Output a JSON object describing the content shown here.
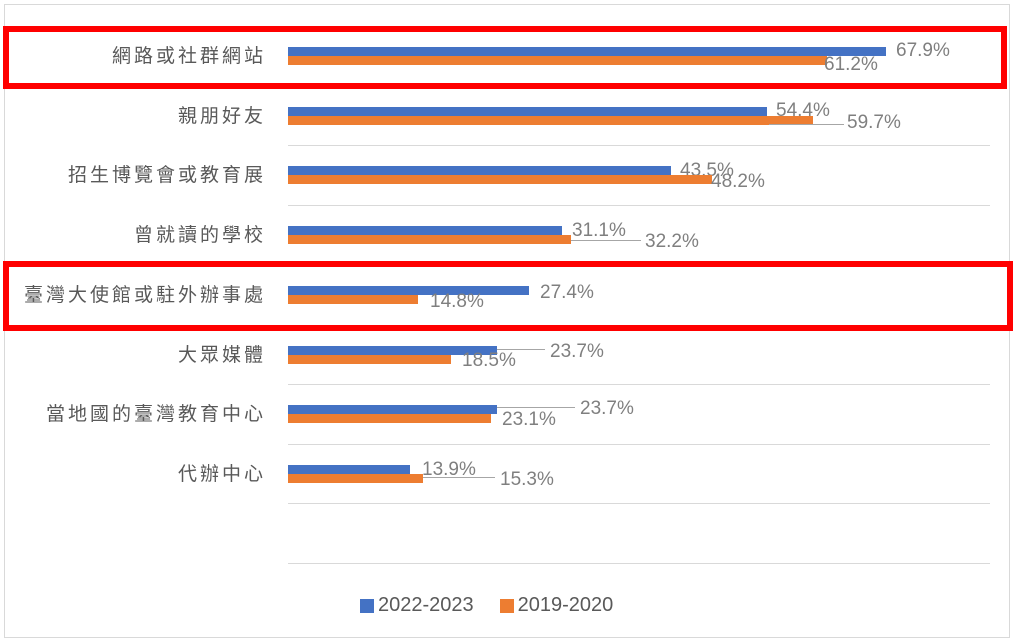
{
  "chart_data": {
    "type": "bar",
    "orientation": "horizontal",
    "title": "",
    "xlabel": "",
    "ylabel": "",
    "categories": [
      "網路或社群網站",
      "親朋好友",
      "招生博覽會或教育展",
      "曾就讀的學校",
      "臺灣大使館或駐外辦事處",
      "大眾媒體",
      "當地國的臺灣教育中心",
      "代辦中心"
    ],
    "series": [
      {
        "name": "2022-2023",
        "color": "#4472c4",
        "values": [
          67.9,
          54.4,
          43.5,
          31.1,
          27.4,
          23.7,
          23.7,
          13.9
        ]
      },
      {
        "name": "2019-2020",
        "color": "#ed7d31",
        "values": [
          61.2,
          59.7,
          48.2,
          32.2,
          14.8,
          18.5,
          23.1,
          15.3
        ]
      }
    ],
    "value_labels": {
      "2022-2023": [
        "67.9%",
        "54.4%",
        "43.5%",
        "31.1%",
        "27.4%",
        "23.7%",
        "23.7%",
        "13.9%"
      ],
      "2019-2020": [
        "61.2%",
        "59.7%",
        "48.2%",
        "32.2%",
        "14.8%",
        "18.5%",
        "23.1%",
        "15.3%"
      ]
    },
    "unit": "%",
    "grid": true,
    "legend_position": "bottom",
    "highlighted_categories": [
      "網路或社群網站",
      "臺灣大使館或駐外辦事處"
    ],
    "highlight_color": "#ff0000"
  },
  "legend": [
    {
      "label": "2022-2023",
      "color": "#4472c4"
    },
    {
      "label": "2019-2020",
      "color": "#ed7d31"
    }
  ]
}
